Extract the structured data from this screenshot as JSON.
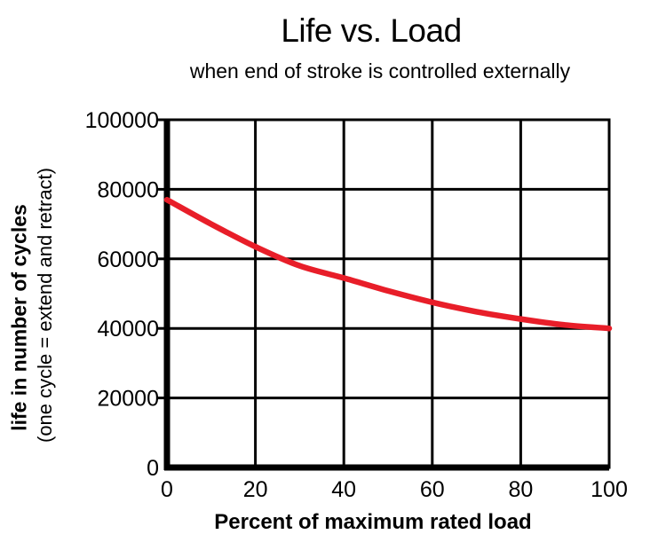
{
  "chart_data": {
    "type": "line",
    "title": "Life vs. Load",
    "subtitle": "when end of stroke is controlled externally",
    "xlabel": "Percent of maximum rated load",
    "ylabel": "life in number of cycles",
    "ylabel_note": "(one cycle = extend and retract)",
    "xlim": [
      0,
      100
    ],
    "ylim": [
      0,
      100000
    ],
    "xticks": [
      0,
      20,
      40,
      60,
      80,
      100
    ],
    "yticks": [
      0,
      20000,
      40000,
      60000,
      80000,
      100000
    ],
    "grid": true,
    "legend": "none",
    "colors": {
      "curve": "#e81e29",
      "axis": "#000000",
      "background": "#ffffff"
    },
    "series": [
      {
        "name": "life-vs-load-curve",
        "x": [
          0,
          10,
          20,
          30,
          40,
          50,
          60,
          70,
          80,
          90,
          100
        ],
        "y": [
          77000,
          70000,
          63500,
          58000,
          54500,
          50800,
          47500,
          44800,
          42700,
          41000,
          40000
        ]
      }
    ]
  }
}
